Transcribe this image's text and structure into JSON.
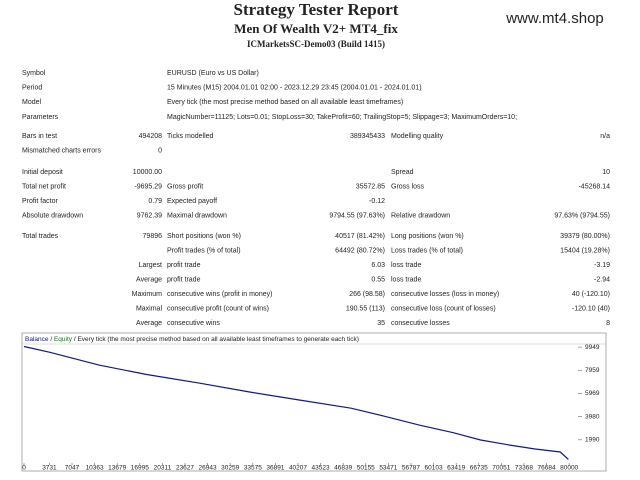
{
  "header": {
    "title": "Strategy Tester Report",
    "subtitle": "Men Of Wealth V2+ MT4_fix",
    "server": "ICMarketsSC-Demo03 (Build 1415)",
    "watermark": "www.mt4.shop"
  },
  "info": [
    [
      "Symbol",
      "EURUSD (Euro vs US Dollar)"
    ],
    [
      "Period",
      "15 Minutes (M15) 2004.01.01 02:00 - 2023.12.29 23:45 (2004.01.01 - 2024.01.01)"
    ],
    [
      "Model",
      "Every tick (the most precise method based on all available least timeframes)"
    ],
    [
      "Parameters",
      "MagicNumber=11125; Lots=0.01; StopLoss=30; TakeProfit=60; TrailingStop=5; Slippage=3; MaximumOrders=10;"
    ]
  ],
  "summary": [
    [
      [
        "Bars in test",
        "494208",
        "Ticks modelled",
        "389345433",
        "Modelling quality",
        "n/a"
      ],
      [
        "Mismatched charts errors",
        "0",
        null,
        null,
        null,
        null
      ]
    ],
    [
      [
        "Initial deposit",
        "10000.00",
        null,
        null,
        "Spread",
        "10"
      ],
      [
        "Total net profit",
        "-9695.29",
        "Gross profit",
        "35572.85",
        "Gross loss",
        "-45268.14"
      ],
      [
        "Profit factor",
        "0.79",
        "Expected payoff",
        "-0.12",
        null,
        null
      ],
      [
        "Absolute drawdown",
        "9762.39",
        "Maximal drawdown",
        "9794.55 (97.63%)",
        "Relative drawdown",
        "97.63% (9794.55)"
      ]
    ],
    [
      [
        "Total trades",
        "79896",
        "Short positions (won %)",
        "40517 (81.42%)",
        "Long positions (won %)",
        "39379 (80.00%)"
      ],
      [
        null,
        null,
        "Profit trades (% of total)",
        "64492 (80.72%)",
        "Loss trades (% of total)",
        "15404 (19.28%)"
      ],
      [
        null,
        "Largest",
        "profit trade",
        "6.03",
        "loss trade",
        "-3.19"
      ],
      [
        null,
        "Average",
        "profit trade",
        "0.55",
        "loss trade",
        "-2.94"
      ],
      [
        null,
        "Maximum",
        "consecutive wins (profit in money)",
        "266 (98.58)",
        "consecutive losses (loss in money)",
        "40 (-120.10)"
      ],
      [
        null,
        "Maximal",
        "consecutive profit (count of wins)",
        "190.55 (113)",
        "consecutive loss (count of losses)",
        "-120.10 (40)"
      ],
      [
        null,
        "Average",
        "consecutive wins",
        "35",
        "consecutive losses",
        "8"
      ]
    ]
  ],
  "chart_data": {
    "type": "line",
    "separator": "/",
    "equity_label": {
      "text": "Equity",
      "color": "#008000"
    },
    "note": "Every tick (the most precise method based on all available least timeframes to generate each tick)",
    "series": [
      {
        "name": "Balance",
        "color": "#0a1a8c",
        "x": [
          0,
          3800,
          11000,
          18000,
          25800,
          33000,
          40500,
          48000,
          53000,
          58000,
          63000,
          67000,
          71300,
          75000,
          78700,
          79896
        ],
        "values": [
          10000,
          9500,
          8400,
          7600,
          6850,
          6100,
          5400,
          4700,
          4000,
          3250,
          2600,
          1970,
          1540,
          1200,
          940,
          305
        ]
      }
    ],
    "xlim": [
      0,
      81300
    ],
    "xticks": [
      0,
      3731,
      7047,
      10363,
      13679,
      16995,
      20311,
      23627,
      26943,
      30259,
      33575,
      36891,
      40207,
      43523,
      46839,
      50155,
      53471,
      56787,
      60103,
      63419,
      66735,
      70051,
      73368,
      76684,
      80000
    ],
    "ylim": [
      0,
      10300
    ],
    "yticks": [
      1990,
      3980,
      5969,
      7959,
      9949
    ]
  }
}
